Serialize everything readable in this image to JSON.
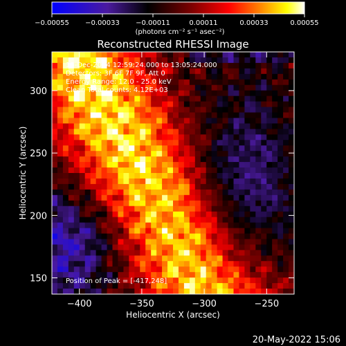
{
  "chart_data": {
    "type": "heatmap",
    "title": "Reconstructed RHESSI Image",
    "xlabel": "Heliocentric X (arcsec)",
    "ylabel": "Heliocentric Y (arcsec)",
    "xlim": [
      -422,
      -228
    ],
    "ylim": [
      137,
      331
    ],
    "xticks": [
      -400,
      -350,
      -300,
      -250
    ],
    "yticks": [
      150,
      200,
      250,
      300
    ],
    "xtick_labels": [
      "−400",
      "−350",
      "−300",
      "−250"
    ],
    "ytick_labels": [
      "150",
      "200",
      "250",
      "300"
    ],
    "colorbar": {
      "range": [
        -0.00055,
        0.00055
      ],
      "ticks": [
        -0.00055,
        -0.00033,
        -0.00011,
        0.00011,
        0.00033,
        0.00055
      ],
      "tick_labels": [
        "−0.00055",
        "−0.00033",
        "−0.00011",
        "0.00011",
        "0.00033",
        "0.00055"
      ],
      "units": "(photons cm⁻² s⁻¹ asec⁻²)",
      "colors": [
        "#0000ff",
        "#4b1a9f",
        "#000000",
        "#7a0000",
        "#ff0000",
        "#ff8000",
        "#ffff00",
        "#ffffff"
      ]
    },
    "annotations": [
      "15-Dec-2014 12:59:24.000 to 13:05:24.000",
      "Detectors: 3F 6F 7F 9F, Att 0",
      "Energy Range: 12.0 - 25.0 keV",
      "Clean     Total counts: 4.12E+03"
    ],
    "peak_label": "Position of Peak = [-417,248]",
    "peak": [
      -417,
      248
    ]
  },
  "footer": {
    "date": "20-May-2022 15:06"
  }
}
